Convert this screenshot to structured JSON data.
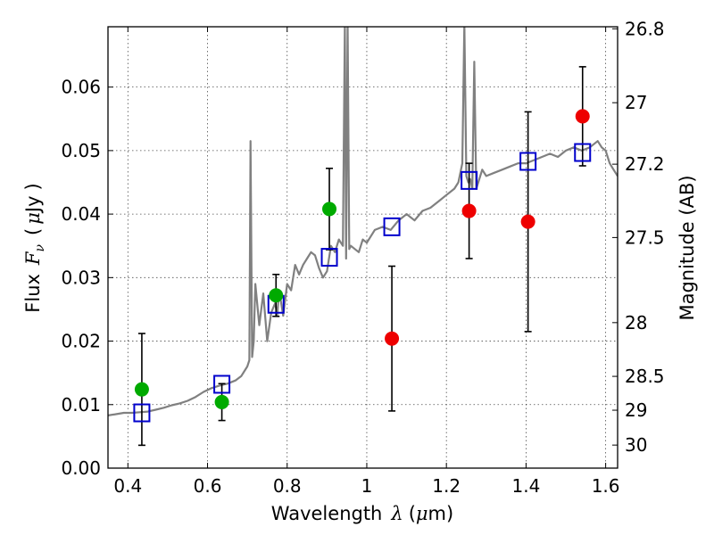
{
  "chart_data": {
    "type": "scatter",
    "xlabel_prefix": "Wavelength",
    "xlabel_symbol": "λ",
    "xlabel_unit_open": "(",
    "xlabel_unit_mu": "μ",
    "xlabel_unit_rest": "m)",
    "ylabel_prefix": "Flux",
    "ylabel_symbol": "F",
    "ylabel_subscript": "ν",
    "ylabel_unit_open": "(",
    "ylabel_unit_mu": "μ",
    "ylabel_unit_rest": "Jy",
    "ylabel_unit_close": ")",
    "ylabel_right": "Magnitude (AB)",
    "xlim": [
      0.35,
      1.63
    ],
    "ylim": [
      0.0,
      0.0695
    ],
    "grid": true,
    "x_ticks": [
      0.4,
      0.6,
      0.8,
      1.0,
      1.2,
      1.4,
      1.6
    ],
    "x_tick_labels": [
      "0.4",
      "0.6",
      "0.8",
      "1",
      "1.2",
      "1.4",
      "1.6"
    ],
    "y_ticks": [
      0.0,
      0.01,
      0.02,
      0.03,
      0.04,
      0.05,
      0.06
    ],
    "y_tick_labels": [
      "0.00",
      "0.01",
      "0.02",
      "0.03",
      "0.04",
      "0.05",
      "0.06"
    ],
    "right_ticks": [
      {
        "flux": 0.06918,
        "label": "26.8"
      },
      {
        "flux": 0.05754,
        "label": "27"
      },
      {
        "flux": 0.04786,
        "label": "27.2"
      },
      {
        "flux": 0.03631,
        "label": "27.5"
      },
      {
        "flux": 0.02291,
        "label": "28"
      },
      {
        "flux": 0.01445,
        "label": "28.5"
      },
      {
        "flux": 0.00912,
        "label": "29"
      },
      {
        "flux": 0.00363,
        "label": "30"
      }
    ],
    "series": [
      {
        "kind": "spectrum",
        "color": "#808080",
        "x": [
          0.35,
          0.37,
          0.39,
          0.41,
          0.43,
          0.45,
          0.47,
          0.49,
          0.51,
          0.53,
          0.55,
          0.57,
          0.59,
          0.61,
          0.63,
          0.65,
          0.67,
          0.685,
          0.7,
          0.705,
          0.708,
          0.712,
          0.716,
          0.72,
          0.73,
          0.74,
          0.75,
          0.76,
          0.77,
          0.775,
          0.78,
          0.79,
          0.8,
          0.81,
          0.82,
          0.83,
          0.84,
          0.85,
          0.86,
          0.87,
          0.88,
          0.89,
          0.9,
          0.91,
          0.92,
          0.93,
          0.94,
          0.945,
          0.948,
          0.952,
          0.956,
          0.96,
          0.97,
          0.98,
          0.99,
          1.0,
          1.02,
          1.04,
          1.06,
          1.08,
          1.1,
          1.12,
          1.14,
          1.16,
          1.18,
          1.2,
          1.22,
          1.23,
          1.24,
          1.245,
          1.25,
          1.255,
          1.26,
          1.265,
          1.27,
          1.275,
          1.28,
          1.29,
          1.3,
          1.32,
          1.34,
          1.36,
          1.38,
          1.4,
          1.42,
          1.44,
          1.46,
          1.48,
          1.5,
          1.52,
          1.54,
          1.56,
          1.58,
          1.59,
          1.6,
          1.61,
          1.62,
          1.63
        ],
        "y": [
          0.0083,
          0.0085,
          0.0087,
          0.0087,
          0.0088,
          0.0089,
          0.0092,
          0.0095,
          0.0099,
          0.0102,
          0.0106,
          0.0112,
          0.012,
          0.0126,
          0.013,
          0.0133,
          0.0138,
          0.0145,
          0.016,
          0.017,
          0.0515,
          0.0175,
          0.02,
          0.029,
          0.0225,
          0.0275,
          0.02,
          0.0245,
          0.026,
          0.024,
          0.028,
          0.024,
          0.029,
          0.028,
          0.032,
          0.0305,
          0.032,
          0.033,
          0.034,
          0.0335,
          0.0315,
          0.03,
          0.031,
          0.035,
          0.034,
          0.036,
          0.035,
          0.07,
          0.033,
          0.07,
          0.0345,
          0.035,
          0.0345,
          0.034,
          0.036,
          0.0355,
          0.0375,
          0.038,
          0.0375,
          0.039,
          0.04,
          0.039,
          0.0405,
          0.041,
          0.042,
          0.043,
          0.044,
          0.045,
          0.048,
          0.07,
          0.046,
          0.045,
          0.0455,
          0.044,
          0.064,
          0.044,
          0.045,
          0.047,
          0.046,
          0.0465,
          0.047,
          0.0475,
          0.048,
          0.048,
          0.0485,
          0.049,
          0.0495,
          0.049,
          0.05,
          0.0505,
          0.05,
          0.0505,
          0.0515,
          0.0505,
          0.05,
          0.048,
          0.047,
          0.046
        ]
      },
      {
        "kind": "squares",
        "color": "#0000cc",
        "x": [
          0.435,
          0.636,
          0.772,
          0.906,
          1.063,
          1.257,
          1.405,
          1.542
        ],
        "y": [
          0.0087,
          0.0132,
          0.0258,
          0.0332,
          0.038,
          0.0453,
          0.0483,
          0.0497
        ]
      },
      {
        "kind": "points",
        "color": "#00aa00",
        "x": [
          0.435,
          0.636,
          0.772,
          0.906
        ],
        "y": [
          0.0124,
          0.0104,
          0.0272,
          0.0408
        ],
        "err": [
          0.0088,
          0.0029,
          0.0033,
          0.0064
        ]
      },
      {
        "kind": "points",
        "color": "#ee0000",
        "x": [
          1.063,
          1.257,
          1.405,
          1.542
        ],
        "y": [
          0.0204,
          0.0405,
          0.0388,
          0.0554
        ],
        "err": [
          0.0114,
          0.0075,
          0.0173,
          0.0078
        ]
      }
    ]
  }
}
